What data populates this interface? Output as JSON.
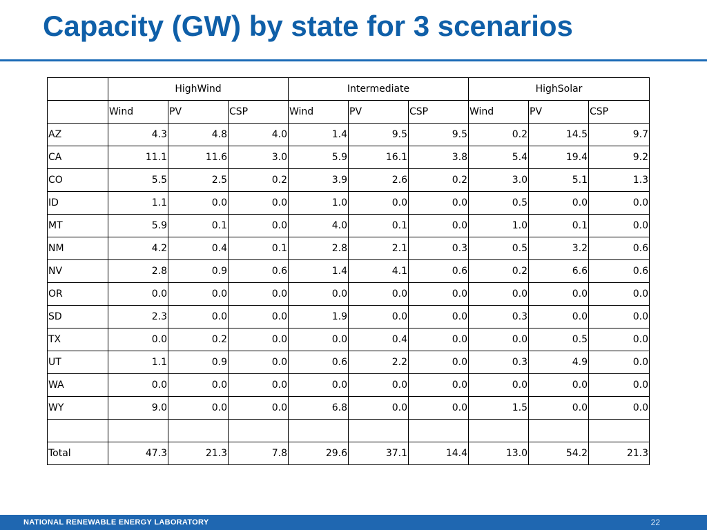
{
  "slide": {
    "title": "Capacity (GW) by state for 3 scenarios",
    "footer_org": "NATIONAL RENEWABLE ENERGY LABORATORY",
    "page_number": "22"
  },
  "table": {
    "groups": [
      "HighWind",
      "Intermediate",
      "HighSolar"
    ],
    "subheaders": [
      "Wind",
      "PV",
      "CSP",
      "Wind",
      "PV",
      "CSP",
      "Wind",
      "PV",
      "CSP"
    ],
    "rows": [
      {
        "state": "AZ",
        "values": [
          "4.3",
          "4.8",
          "4.0",
          "1.4",
          "9.5",
          "9.5",
          "0.2",
          "14.5",
          "9.7"
        ]
      },
      {
        "state": "CA",
        "values": [
          "11.1",
          "11.6",
          "3.0",
          "5.9",
          "16.1",
          "3.8",
          "5.4",
          "19.4",
          "9.2"
        ]
      },
      {
        "state": "CO",
        "values": [
          "5.5",
          "2.5",
          "0.2",
          "3.9",
          "2.6",
          "0.2",
          "3.0",
          "5.1",
          "1.3"
        ]
      },
      {
        "state": "ID",
        "values": [
          "1.1",
          "0.0",
          "0.0",
          "1.0",
          "0.0",
          "0.0",
          "0.5",
          "0.0",
          "0.0"
        ]
      },
      {
        "state": "MT",
        "values": [
          "5.9",
          "0.1",
          "0.0",
          "4.0",
          "0.1",
          "0.0",
          "1.0",
          "0.1",
          "0.0"
        ]
      },
      {
        "state": "NM",
        "values": [
          "4.2",
          "0.4",
          "0.1",
          "2.8",
          "2.1",
          "0.3",
          "0.5",
          "3.2",
          "0.6"
        ]
      },
      {
        "state": "NV",
        "values": [
          "2.8",
          "0.9",
          "0.6",
          "1.4",
          "4.1",
          "0.6",
          "0.2",
          "6.6",
          "0.6"
        ]
      },
      {
        "state": "OR",
        "values": [
          "0.0",
          "0.0",
          "0.0",
          "0.0",
          "0.0",
          "0.0",
          "0.0",
          "0.0",
          "0.0"
        ]
      },
      {
        "state": "SD",
        "values": [
          "2.3",
          "0.0",
          "0.0",
          "1.9",
          "0.0",
          "0.0",
          "0.3",
          "0.0",
          "0.0"
        ]
      },
      {
        "state": "TX",
        "values": [
          "0.0",
          "0.2",
          "0.0",
          "0.0",
          "0.4",
          "0.0",
          "0.0",
          "0.5",
          "0.0"
        ]
      },
      {
        "state": "UT",
        "values": [
          "1.1",
          "0.9",
          "0.0",
          "0.6",
          "2.2",
          "0.0",
          "0.3",
          "4.9",
          "0.0"
        ]
      },
      {
        "state": "WA",
        "values": [
          "0.0",
          "0.0",
          "0.0",
          "0.0",
          "0.0",
          "0.0",
          "0.0",
          "0.0",
          "0.0"
        ]
      },
      {
        "state": "WY",
        "values": [
          "9.0",
          "0.0",
          "0.0",
          "6.8",
          "0.0",
          "0.0",
          "1.5",
          "0.0",
          "0.0"
        ]
      }
    ],
    "total": {
      "label": "Total",
      "values": [
        "47.3",
        "21.3",
        "7.8",
        "29.6",
        "37.1",
        "14.4",
        "13.0",
        "54.2",
        "21.3"
      ]
    }
  }
}
